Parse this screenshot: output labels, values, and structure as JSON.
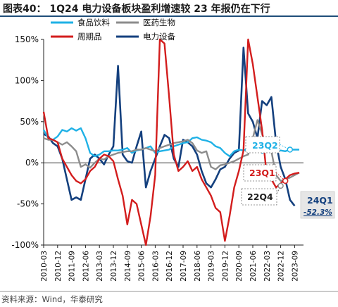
{
  "title": "图表40： 1Q24 电力设备板块盈利增速较 23 年报仍在下行",
  "source": "资料来源：Wind，华泰研究",
  "chart_data": {
    "type": "line",
    "ylim": [
      -100,
      150
    ],
    "y_ticks": [
      "150%",
      "100%",
      "50%",
      "0%",
      "-50%",
      "-100%"
    ],
    "y_tick_values": [
      150,
      100,
      50,
      0,
      -50,
      -100
    ],
    "x_ticks": [
      "2010-03",
      "2010-12",
      "2011-09",
      "2012-06",
      "2013-03",
      "2013-12",
      "2014-09",
      "2015-06",
      "2016-03",
      "2016-12",
      "2017-09",
      "2018-06",
      "2019-03",
      "2019-12",
      "2020-09",
      "2021-06",
      "2022-03",
      "2022-12",
      "2023-09"
    ],
    "legend_position": "top-left",
    "grid": false,
    "series": [
      {
        "name": "食品饮料",
        "color": "#1fb1e6",
        "values": [
          40,
          30,
          28,
          32,
          40,
          38,
          42,
          39,
          42,
          30,
          12,
          8,
          10,
          14,
          14,
          15,
          15,
          16,
          18,
          12,
          15,
          16,
          18,
          20,
          12,
          14,
          15,
          16,
          20,
          22,
          24,
          25,
          30,
          31,
          28,
          27,
          25,
          20,
          18,
          12,
          8,
          14,
          16,
          15,
          17,
          20,
          18,
          12,
          16,
          15,
          14,
          15,
          14,
          16,
          16,
          16
        ]
      },
      {
        "name": "医药生物",
        "color": "#8c8c8c",
        "values": [
          30,
          28,
          28,
          25,
          22,
          25,
          20,
          14,
          -5,
          -2,
          -6,
          0,
          5,
          4,
          8,
          10,
          12,
          13,
          14,
          14,
          16,
          16,
          18,
          16,
          14,
          18,
          20,
          22,
          24,
          25,
          26,
          28,
          24,
          15,
          12,
          14,
          -5,
          -8,
          -3,
          -2,
          0,
          2,
          5,
          8,
          10,
          30,
          52,
          35,
          20,
          14,
          -15,
          -22,
          -20,
          -18,
          -15,
          -12
        ]
      },
      {
        "name": "周期品",
        "color": "#d31d1d",
        "values": [
          62,
          30,
          28,
          25,
          5,
          -5,
          -15,
          -22,
          -25,
          -20,
          -10,
          -5,
          5,
          10,
          8,
          2,
          -20,
          -40,
          -75,
          -45,
          -50,
          -75,
          -100,
          -65,
          -15,
          150,
          145,
          80,
          10,
          -10,
          -5,
          2,
          -10,
          -5,
          -20,
          -30,
          -40,
          -55,
          -60,
          -95,
          -65,
          -30,
          -10,
          15,
          150,
          120,
          80,
          40,
          -15,
          -20,
          -30,
          -25,
          -20,
          -15,
          -13,
          -12
        ]
      },
      {
        "name": "电力设备",
        "color": "#14407e",
        "values": [
          35,
          32,
          24,
          20,
          5,
          -20,
          -45,
          -42,
          -45,
          -20,
          5,
          10,
          5,
          -2,
          10,
          20,
          118,
          10,
          2,
          0,
          20,
          38,
          -30,
          -10,
          5,
          20,
          34,
          30,
          5,
          -5,
          28,
          25,
          20,
          10,
          -10,
          -25,
          -30,
          -20,
          -8,
          -5,
          5,
          12,
          15,
          140,
          60,
          50,
          30,
          75,
          70,
          80,
          25,
          -5,
          -20,
          -45,
          -52.3
        ]
      }
    ],
    "annotations": [
      {
        "text": "23Q2",
        "color": "#1fb1e6"
      },
      {
        "text": "23Q1",
        "color": "#d31d1d"
      },
      {
        "text": "22Q4",
        "color": "#222222"
      },
      {
        "text": "24Q1",
        "color": "#14407e"
      },
      {
        "text": "-52.3%",
        "color": "#14407e"
      }
    ]
  }
}
